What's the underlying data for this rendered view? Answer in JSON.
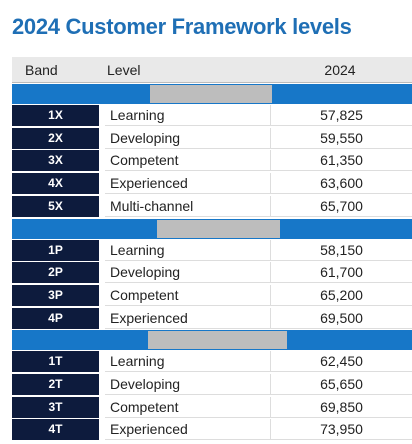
{
  "title": "2024 Customer Framework levels",
  "table": {
    "header": [
      "Band",
      "Level",
      "2024"
    ],
    "groups": [
      {
        "rows": [
          [
            "1X",
            "Learning",
            "57,825"
          ],
          [
            "2X",
            "Developing",
            "59,550"
          ],
          [
            "3X",
            "Competent",
            "61,350"
          ],
          [
            "4X",
            "Experienced",
            "63,600"
          ],
          [
            "5X",
            "Multi-channel",
            "65,700"
          ]
        ]
      },
      {
        "rows": [
          [
            "1P",
            "Learning",
            "58,150"
          ],
          [
            "2P",
            "Developing",
            "61,700"
          ],
          [
            "3P",
            "Competent",
            "65,200"
          ],
          [
            "4P",
            "Experienced",
            "69,500"
          ]
        ]
      },
      {
        "rows": [
          [
            "1T",
            "Learning",
            "62,450"
          ],
          [
            "2T",
            "Developing",
            "65,650"
          ],
          [
            "3T",
            "Competent",
            "69,850"
          ],
          [
            "4T",
            "Experienced",
            "73,950"
          ]
        ]
      }
    ]
  }
}
